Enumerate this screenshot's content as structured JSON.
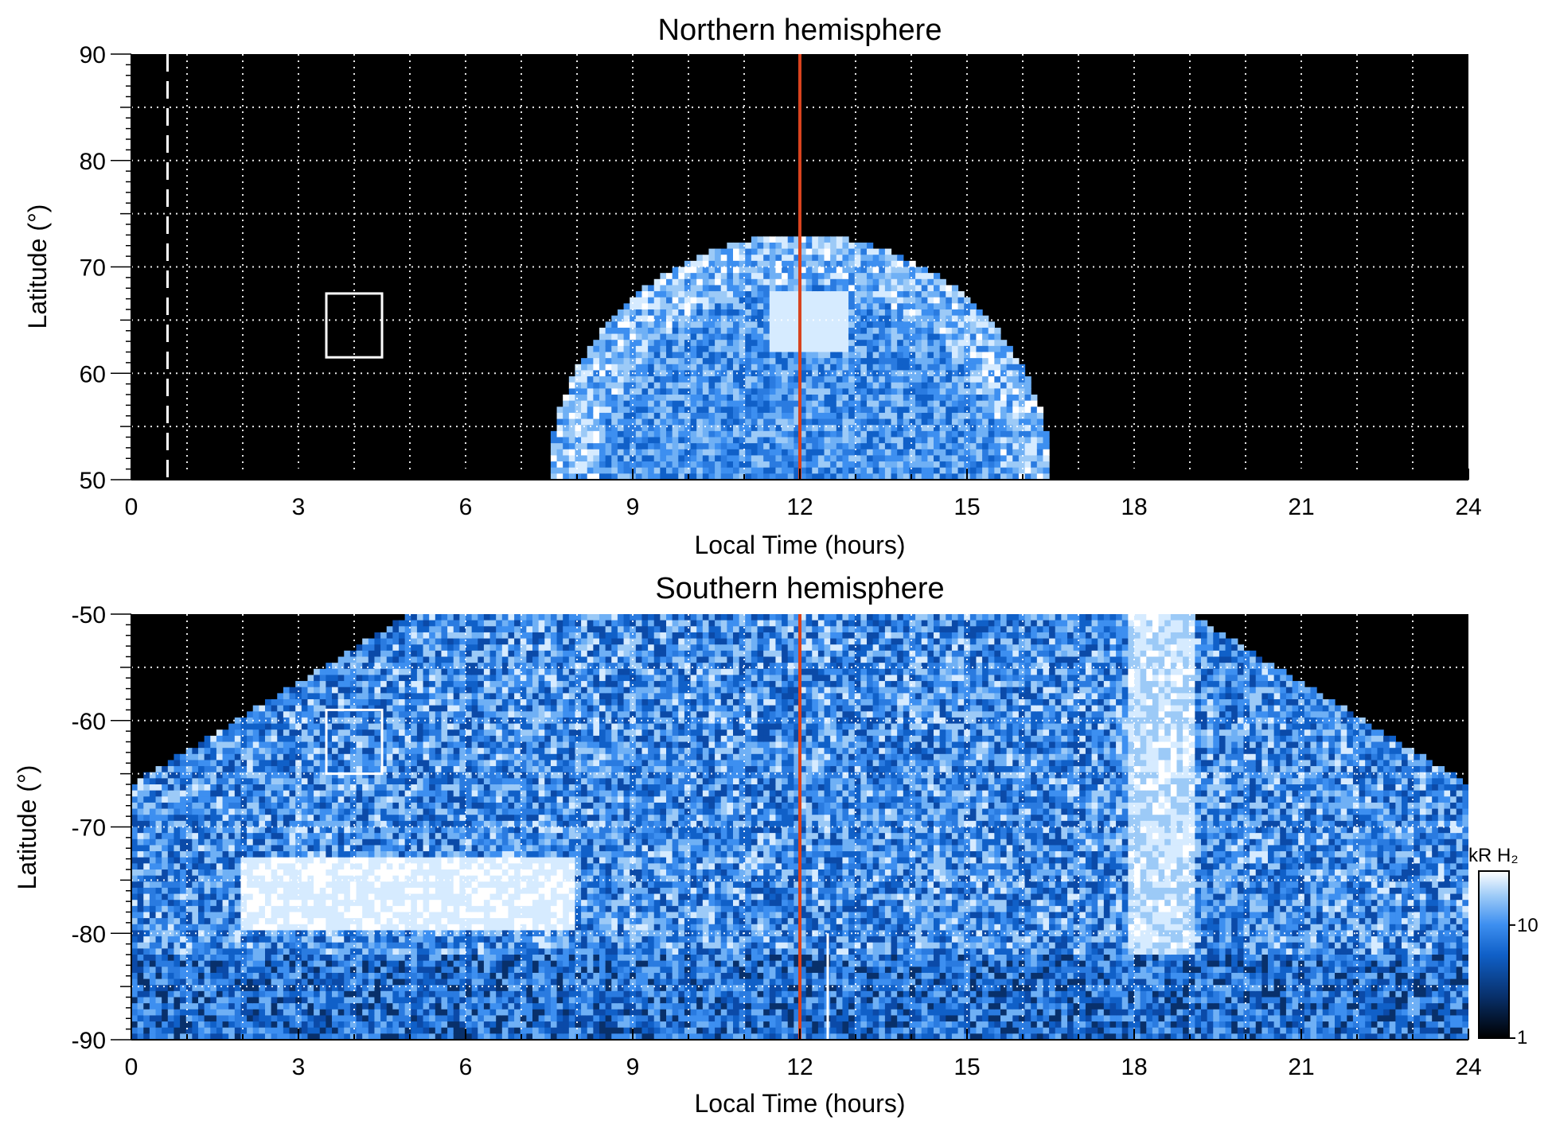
{
  "chart_data": [
    {
      "type": "heatmap",
      "title": "Northern hemisphere",
      "xlabel": "Local Time (hours)",
      "ylabel": "Latitude (°)",
      "xlim": [
        0,
        24
      ],
      "ylim": [
        50,
        90
      ],
      "xticks": [
        "0",
        "3",
        "6",
        "9",
        "12",
        "15",
        "18",
        "21",
        "24"
      ],
      "yticks": [
        "50",
        "60",
        "70",
        "80",
        "90"
      ],
      "grid": true,
      "background": "#000000",
      "emission_region": {
        "description_source": "image",
        "center_lt": 12,
        "lt_extent_at_50": [
          7.5,
          16.5
        ],
        "max_latitude": 73
      },
      "markers": [
        {
          "kind": "vertical-line",
          "x": 12,
          "color": "#d9431e"
        },
        {
          "kind": "dashed-vertical-line",
          "x": 0.65,
          "color": "#ffffff"
        },
        {
          "kind": "box",
          "x": [
            3.5,
            4.5
          ],
          "y": [
            61.5,
            67.5
          ],
          "color": "#ffffff"
        }
      ]
    },
    {
      "type": "heatmap",
      "title": "Southern hemisphere",
      "xlabel": "Local Time (hours)",
      "ylabel": "Latitude (°)",
      "xlim": [
        0,
        24
      ],
      "ylim": [
        -90,
        -50
      ],
      "xticks": [
        "0",
        "3",
        "6",
        "9",
        "12",
        "15",
        "18",
        "21",
        "24"
      ],
      "yticks": [
        "-50",
        "-60",
        "-70",
        "-80",
        "-90"
      ],
      "grid": true,
      "background": "#000000",
      "markers": [
        {
          "kind": "vertical-line",
          "x": 12,
          "color": "#d9431e"
        },
        {
          "kind": "vertical-line",
          "x": 12.5,
          "y": [
            -90,
            -80
          ],
          "color": "#ffffff"
        },
        {
          "kind": "box",
          "x": [
            3.5,
            4.5
          ],
          "y": [
            -65,
            -59
          ],
          "color": "#ffffff"
        }
      ],
      "colorbar": {
        "label": "kR H₂",
        "scale": "log",
        "range": [
          1,
          30
        ],
        "ticks": [
          "1",
          "10"
        ],
        "colors": [
          "#000000",
          "#08306b",
          "#1060c8",
          "#3d8ff0",
          "#9ccaf7",
          "#ffffff"
        ]
      }
    }
  ]
}
